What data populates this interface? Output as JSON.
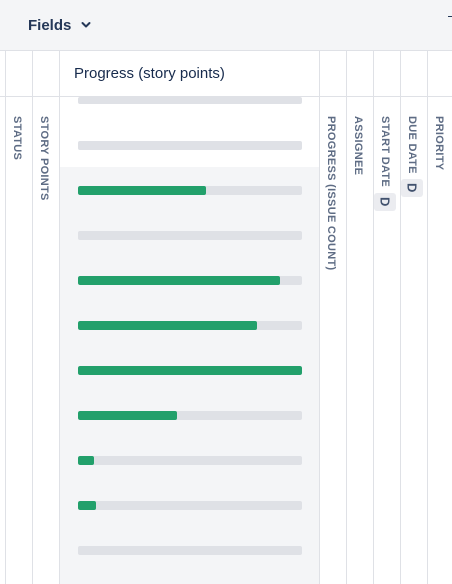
{
  "toolbar": {
    "fields_label": "Fields"
  },
  "progress_column": {
    "header": "Progress (story points)",
    "rows": [
      {
        "progress": 0
      },
      {
        "progress": 0
      },
      {
        "progress": 0.57
      },
      {
        "progress": 0
      },
      {
        "progress": 0.9
      },
      {
        "progress": 0.8
      },
      {
        "progress": 1.0
      },
      {
        "progress": 0.44
      },
      {
        "progress": 0.07
      },
      {
        "progress": 0.08
      },
      {
        "progress": 0
      }
    ]
  },
  "columns": {
    "status": "STATUS",
    "story_points": "STORY POINTS",
    "progress_issue_count": "PROGRESS (ISSUE COUNT)",
    "assignee": "ASSIGNEE",
    "start_date": "START DATE",
    "start_date_badge": "D",
    "due_date": "DUE DATE",
    "due_date_badge": "D",
    "priority": "PRIORITY"
  },
  "colors": {
    "progress_fill": "#22a06b",
    "progress_track": "#dfe1e6",
    "header_text": "#5e6c84",
    "toolbar_bg": "#f4f5f7"
  }
}
